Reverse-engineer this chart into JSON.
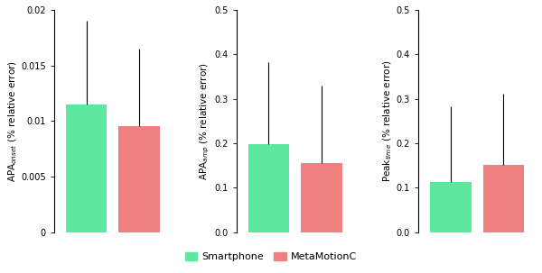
{
  "subplots": [
    {
      "ylabel": "APA$_{onset}$ (% relative error)",
      "ylim": [
        0,
        0.02
      ],
      "yticks": [
        0,
        0.005,
        0.01,
        0.015,
        0.02
      ],
      "bar_values": [
        0.0115,
        0.0095
      ],
      "bar_errors_up": [
        0.0075,
        0.007
      ],
      "bar_errors_dn": [
        0.0,
        0.0
      ],
      "bar_colors": [
        "#5de8a0",
        "#f08080"
      ]
    },
    {
      "ylabel": "APA$_{amp}$ (% relative error)",
      "ylim": [
        0,
        0.5
      ],
      "yticks": [
        0,
        0.1,
        0.2,
        0.3,
        0.4,
        0.5
      ],
      "bar_values": [
        0.197,
        0.155
      ],
      "bar_errors_up": [
        0.185,
        0.175
      ],
      "bar_errors_dn": [
        0.0,
        0.0
      ],
      "bar_colors": [
        "#5de8a0",
        "#f08080"
      ]
    },
    {
      "ylabel": "Peak$_{time}$ (% relative error)",
      "ylim": [
        0,
        0.5
      ],
      "yticks": [
        0,
        0.1,
        0.2,
        0.3,
        0.4,
        0.5
      ],
      "bar_values": [
        0.113,
        0.152
      ],
      "bar_errors_up": [
        0.17,
        0.16
      ],
      "bar_errors_dn": [
        0.0,
        0.0
      ],
      "bar_colors": [
        "#5de8a0",
        "#f08080"
      ]
    }
  ],
  "legend_labels": [
    "Smartphone",
    "MetaMotionC"
  ],
  "legend_colors": [
    "#5de8a0",
    "#f08080"
  ],
  "background_color": "#ffffff",
  "bar_width": 0.28,
  "bar_gap": 0.08,
  "ylabel_fontsize": 7.5,
  "tick_fontsize": 7,
  "legend_fontsize": 8
}
